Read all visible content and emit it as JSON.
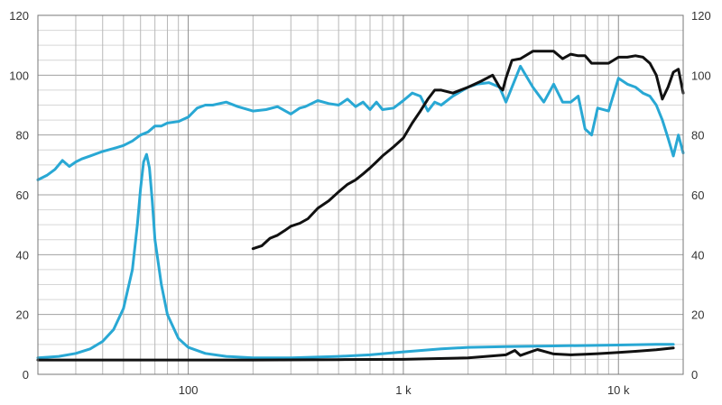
{
  "chart_data": {
    "type": "line",
    "x_scale": "log",
    "xlim": [
      20,
      20000
    ],
    "ylim": [
      0,
      120
    ],
    "y_ticks": [
      0,
      20,
      40,
      60,
      80,
      100,
      120
    ],
    "y_tick_labels": [
      "0",
      "20",
      "40",
      "60",
      "80",
      "100",
      "120"
    ],
    "x_ticks": [
      100,
      1000,
      10000
    ],
    "x_tick_labels": [
      "100",
      "1 k",
      "10 k"
    ],
    "grid": true,
    "legend": "none",
    "series": [
      {
        "color": "#29a8d4",
        "x": [
          20,
          22,
          24,
          26,
          28,
          30,
          32,
          35,
          40,
          45,
          50,
          55,
          60,
          65,
          70,
          75,
          80,
          90,
          100,
          110,
          120,
          130,
          150,
          170,
          200,
          230,
          260,
          300,
          330,
          350,
          400,
          450,
          500,
          550,
          600,
          650,
          700,
          750,
          800,
          900,
          1000,
          1100,
          1200,
          1300,
          1400,
          1500,
          1700,
          2000,
          2200,
          2500,
          2800,
          3000,
          3200,
          3500,
          4000,
          4500,
          5000,
          5500,
          6000,
          6500,
          7000,
          7500,
          8000,
          9000,
          10000,
          11000,
          12000,
          13000,
          14000,
          15000,
          16000,
          17000,
          18000,
          19000,
          20000
        ],
        "y": [
          65,
          66.5,
          68.5,
          71.5,
          69.5,
          71,
          72,
          73,
          74.5,
          75.5,
          76.5,
          78,
          80,
          81,
          83,
          83,
          84,
          84.5,
          86,
          89,
          90,
          90,
          91,
          89.5,
          88,
          88.5,
          89.5,
          87,
          89,
          89.5,
          91.5,
          90.5,
          90,
          92,
          89.5,
          91,
          88.5,
          91,
          88.5,
          89,
          91.5,
          94,
          93,
          88,
          91,
          90,
          93,
          96,
          97,
          97.5,
          96,
          91,
          96,
          103,
          96,
          91,
          97,
          91,
          91,
          93,
          82,
          80,
          89,
          88,
          99,
          97,
          96,
          94,
          93,
          90,
          85,
          79,
          73,
          80,
          74
        ]
      },
      {
        "color": "#111111",
        "x": [
          200,
          220,
          240,
          260,
          280,
          300,
          330,
          360,
          400,
          450,
          500,
          550,
          600,
          650,
          700,
          750,
          800,
          900,
          1000,
          1100,
          1200,
          1300,
          1400,
          1500,
          1700,
          2000,
          2300,
          2600,
          2800,
          2900,
          3000,
          3200,
          3500,
          4000,
          4500,
          5000,
          5500,
          6000,
          6500,
          7000,
          7500,
          8000,
          9000,
          10000,
          11000,
          12000,
          13000,
          14000,
          15000,
          16000,
          17000,
          18000,
          19000,
          20000
        ],
        "y": [
          42,
          43,
          45.5,
          46.5,
          48,
          49.5,
          50.5,
          52,
          55.5,
          58,
          61,
          63.5,
          65,
          67,
          69,
          71,
          73,
          76,
          79,
          84,
          88,
          92,
          95,
          95,
          94,
          96,
          98,
          100,
          96,
          95,
          99,
          105,
          105.5,
          108,
          108,
          108,
          105.5,
          107,
          106.5,
          106.5,
          104,
          104,
          104,
          106,
          106,
          106.5,
          106,
          104,
          100,
          92,
          96,
          101,
          102,
          94
        ]
      },
      {
        "color": "#29a8d4",
        "x": [
          20,
          25,
          30,
          35,
          40,
          45,
          50,
          55,
          58,
          60,
          62,
          64,
          66,
          68,
          70,
          75,
          80,
          90,
          100,
          120,
          150,
          200,
          300,
          500,
          700,
          1000,
          1500,
          2000,
          3000,
          5000,
          10000,
          15000,
          18000
        ],
        "y": [
          5.5,
          6,
          7,
          8.5,
          11,
          15,
          22,
          35,
          50,
          62,
          71,
          73.5,
          69,
          58,
          45,
          30,
          20,
          12,
          9,
          7,
          6,
          5.5,
          5.5,
          6,
          6.5,
          7.5,
          8.5,
          9,
          9.3,
          9.5,
          9.8,
          10,
          10
        ]
      },
      {
        "color": "#111111",
        "x": [
          20,
          50,
          100,
          200,
          500,
          1000,
          2000,
          3000,
          3300,
          3500,
          3800,
          4200,
          4600,
          5000,
          6000,
          7000,
          8000,
          10000,
          12000,
          15000,
          18000
        ],
        "y": [
          4.8,
          4.8,
          4.8,
          4.8,
          4.9,
          5,
          5.5,
          6.5,
          8,
          6.3,
          7.2,
          8.3,
          7.5,
          6.8,
          6.5,
          6.7,
          6.9,
          7.3,
          7.7,
          8.2,
          8.8
        ]
      }
    ]
  }
}
